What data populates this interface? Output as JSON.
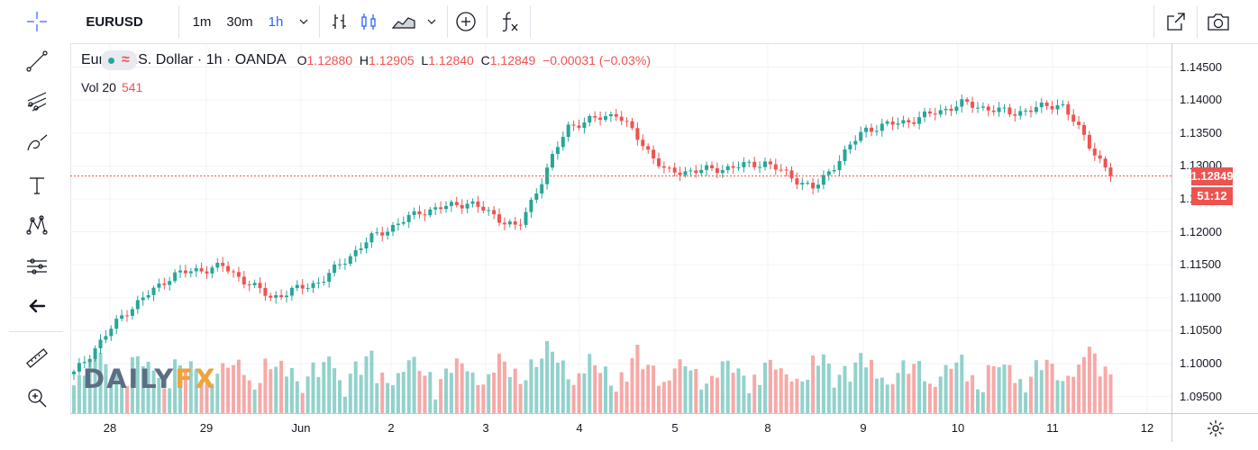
{
  "symbol": "EURUSD",
  "intervals": [
    "1m",
    "30m",
    "1h"
  ],
  "active_interval": "1h",
  "legend": {
    "title": "Euro / U.S. Dollar · 1h · OANDA",
    "open_label": "O",
    "open": "1.12880",
    "high_label": "H",
    "high": "1.12905",
    "low_label": "L",
    "low": "1.12840",
    "close_label": "C",
    "close": "1.12849",
    "change": "−0.00031 (−0.03%)",
    "pair_icon_text": "≈"
  },
  "volume": {
    "label": "Vol 20",
    "value": "541"
  },
  "last_price": "1.12849",
  "countdown": "51:12",
  "price_axis": {
    "ticks": [
      "1.14500",
      "1.14000",
      "1.13500",
      "1.13000",
      "1.12500",
      "1.12000",
      "1.11500",
      "1.11000",
      "1.10500",
      "1.10000",
      "1.09500"
    ],
    "min": 1.0925,
    "max": 1.1485
  },
  "time_axis": [
    "28",
    "29",
    "Jun",
    "2",
    "3",
    "4",
    "5",
    "8",
    "9",
    "10",
    "11",
    "12"
  ],
  "watermark": {
    "part1": "DAILY",
    "part2": "FX"
  },
  "colors": {
    "up": "#26a69a",
    "down": "#ef5350",
    "accent": "#2962ff",
    "grid": "#f0f3fa"
  },
  "icons": {
    "left_toolbar": [
      "crosshair-icon",
      "trend-line-icon",
      "pitchfork-icon",
      "brush-icon",
      "text-icon",
      "pattern-icon",
      "prediction-icon",
      "back-arrow-icon",
      "ruler-icon",
      "zoom-in-icon"
    ],
    "top_toolbar": [
      "chevron-down-icon",
      "bar-chart-icon",
      "candle-chart-icon",
      "area-chart-icon",
      "chevron-down-icon",
      "add-compare-icon",
      "indicators-fx-icon",
      "fullscreen-icon",
      "snapshot-camera-icon"
    ],
    "axis_settings": "gear-icon"
  },
  "chart_data": {
    "type": "candlestick",
    "xlabel": "",
    "ylabel": "",
    "ylim": [
      1.0925,
      1.1485
    ],
    "x_ticks": [
      "28",
      "29",
      "Jun",
      "2",
      "3",
      "4",
      "5",
      "8",
      "9",
      "10",
      "11",
      "12"
    ],
    "close_path": [
      {
        "x": "28",
        "y": 1.0985
      },
      {
        "x": "29",
        "y": 1.1075
      },
      {
        "x": "29",
        "y": 1.1135
      },
      {
        "x": "Jun",
        "y": 1.1148
      },
      {
        "x": "Jun",
        "y": 1.11
      },
      {
        "x": "2",
        "y": 1.1125
      },
      {
        "x": "2",
        "y": 1.119
      },
      {
        "x": "3",
        "y": 1.123
      },
      {
        "x": "3",
        "y": 1.1245
      },
      {
        "x": "4",
        "y": 1.1205
      },
      {
        "x": "4",
        "y": 1.136
      },
      {
        "x": "5",
        "y": 1.138
      },
      {
        "x": "5",
        "y": 1.129
      },
      {
        "x": "8",
        "y": 1.1295
      },
      {
        "x": "8",
        "y": 1.1305
      },
      {
        "x": "9",
        "y": 1.1265
      },
      {
        "x": "9",
        "y": 1.1355
      },
      {
        "x": "10",
        "y": 1.137
      },
      {
        "x": "10",
        "y": 1.1395
      },
      {
        "x": "11",
        "y": 1.138
      },
      {
        "x": "11",
        "y": 1.1395
      },
      {
        "x": "12",
        "y": 1.12849
      }
    ],
    "last_price": 1.12849
  }
}
